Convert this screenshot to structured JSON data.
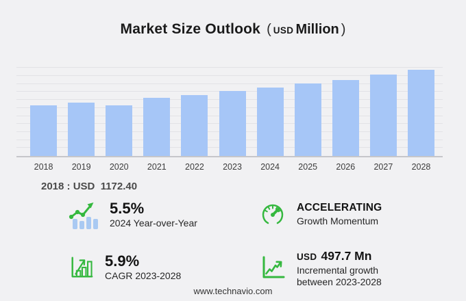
{
  "title": {
    "main": "Market Size Outlook",
    "paren_open": "(",
    "unit_small": "USD",
    "unit_large": "Million",
    "paren_close": ")"
  },
  "chart_data": {
    "type": "bar",
    "title": "Market Size Outlook (USD Million)",
    "unit": "USD Million",
    "categories": [
      "2018",
      "2019",
      "2020",
      "2021",
      "2022",
      "2023",
      "2024",
      "2025",
      "2026",
      "2027",
      "2028"
    ],
    "values": [
      1172.4,
      1234,
      1170,
      1345,
      1402,
      1500,
      1582.5,
      1670,
      1757,
      1878,
      1997.7
    ],
    "ylim": [
      0,
      2150
    ],
    "grid": true,
    "legend": false,
    "bar_color": "#a6c6f7",
    "annotation": "2018 : USD  1172.40"
  },
  "base_value_label": "2018 : USD  1172.40",
  "stats": [
    {
      "icon": "bar-trend-icon",
      "headline": "5.5%",
      "sub": "2024 Year-over-Year"
    },
    {
      "icon": "speedometer-icon",
      "headline": "ACCELERATING",
      "sub": "Growth Momentum"
    },
    {
      "icon": "bar-growth-icon",
      "headline": "5.9%",
      "sub": "CAGR 2023-2028"
    },
    {
      "icon": "line-growth-icon",
      "headline_prefix": "USD",
      "headline": "497.7 Mn",
      "sub_line1": "Incremental growth",
      "sub_line2": "between 2023-2028"
    }
  ],
  "footer": {
    "url": "www.technavio.com"
  },
  "colors": {
    "background": "#f1f1f3",
    "bar": "#a6c6f7",
    "accent_green": "#35b83f",
    "gridline": "#e2e2e6",
    "axis": "#c6c6ca"
  }
}
